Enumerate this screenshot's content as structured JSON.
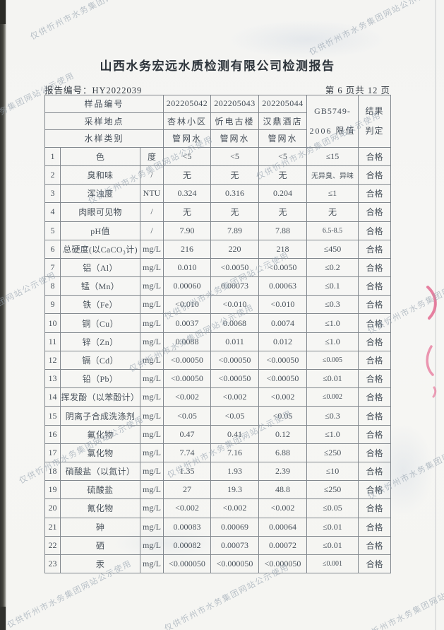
{
  "header": {
    "title": "山西水务宏远水质检测有限公司检测报告",
    "report_no": "报告编号：HY2022039",
    "page_info": "第 6 页共 12 页"
  },
  "watermark": {
    "text": "仅供忻州市水务集团网站公示使用"
  },
  "colors": {
    "stamp": "#e26089",
    "watermark": "#93a0ad",
    "ink": "#49525b",
    "paper": "#f5f5f3"
  },
  "table": {
    "header_rows": [
      {
        "label": "样品编号",
        "values": [
          "202205042",
          "202205043",
          "202205044"
        ]
      },
      {
        "label": "采样地点",
        "values": [
          "杏林小区",
          "忻电古楼",
          "汉鼎酒店"
        ]
      },
      {
        "label": "水样类别",
        "values": [
          "管网水",
          "管网水",
          "管网水"
        ]
      }
    ],
    "limit_header_line1": "GB5749-",
    "limit_header_line2": "2006 限值",
    "result_header_line1": "结果",
    "result_header_line2": "判定",
    "rows": [
      {
        "no": "1",
        "name": "色",
        "unit": "度",
        "v1": "<5",
        "v2": "<5",
        "v3": "<5",
        "limit": "≤15",
        "result": "合格"
      },
      {
        "no": "2",
        "name": "臭和味",
        "unit": "/",
        "v1": "无",
        "v2": "无",
        "v3": "无",
        "limit": "无异臭、异味",
        "result": "合格"
      },
      {
        "no": "3",
        "name": "浑浊度",
        "unit": "NTU",
        "v1": "0.324",
        "v2": "0.316",
        "v3": "0.204",
        "limit": "≤1",
        "result": "合格"
      },
      {
        "no": "4",
        "name": "肉眼可见物",
        "unit": "/",
        "v1": "无",
        "v2": "无",
        "v3": "无",
        "limit": "无",
        "result": "合格"
      },
      {
        "no": "5",
        "name": "pH值",
        "unit": "/",
        "v1": "7.90",
        "v2": "7.89",
        "v3": "7.88",
        "limit": "6.5-8.5",
        "result": "合格"
      },
      {
        "no": "6",
        "name": "总硬度(以CaCO₃计)",
        "unit": "mg/L",
        "v1": "216",
        "v2": "220",
        "v3": "218",
        "limit": "≤450",
        "result": "合格"
      },
      {
        "no": "7",
        "name": "铝（Al）",
        "unit": "mg/L",
        "v1": "0.010",
        "v2": "<0.0050",
        "v3": "<0.0050",
        "limit": "≤0.2",
        "result": "合格"
      },
      {
        "no": "8",
        "name": "锰（Mn）",
        "unit": "mg/L",
        "v1": "0.00060",
        "v2": "0.00073",
        "v3": "0.00063",
        "limit": "≤0.1",
        "result": "合格"
      },
      {
        "no": "9",
        "name": "铁（Fe）",
        "unit": "mg/L",
        "v1": "<0.010",
        "v2": "<0.010",
        "v3": "<0.010",
        "limit": "≤0.3",
        "result": "合格"
      },
      {
        "no": "10",
        "name": "铜（Cu）",
        "unit": "mg/L",
        "v1": "0.0037",
        "v2": "0.0068",
        "v3": "0.0074",
        "limit": "≤1.0",
        "result": "合格"
      },
      {
        "no": "11",
        "name": "锌（Zn）",
        "unit": "mg/L",
        "v1": "0.0088",
        "v2": "0.011",
        "v3": "0.012",
        "limit": "≤1.0",
        "result": "合格"
      },
      {
        "no": "12",
        "name": "镉（Cd）",
        "unit": "mg/L",
        "v1": "<0.00050",
        "v2": "<0.00050",
        "v3": "<0.00050",
        "limit": "≤0.005",
        "result": "合格"
      },
      {
        "no": "13",
        "name": "铅（Pb）",
        "unit": "mg/L",
        "v1": "<0.00050",
        "v2": "<0.00050",
        "v3": "<0.00050",
        "limit": "≤0.01",
        "result": "合格"
      },
      {
        "no": "14",
        "name": "挥发酚（以苯酚计）",
        "unit": "mg/L",
        "v1": "<0.002",
        "v2": "<0.002",
        "v3": "<0.002",
        "limit": "≤0.002",
        "result": "合格"
      },
      {
        "no": "15",
        "name": "阴离子合成洗涤剂",
        "unit": "mg/L",
        "v1": "<0.05",
        "v2": "<0.05",
        "v3": "<0.05",
        "limit": "≤0.3",
        "result": "合格"
      },
      {
        "no": "16",
        "name": "氟化物",
        "unit": "mg/L",
        "v1": "0.47",
        "v2": "0.41",
        "v3": "0.12",
        "limit": "≤1.0",
        "result": "合格"
      },
      {
        "no": "17",
        "name": "氯化物",
        "unit": "mg/L",
        "v1": "7.74",
        "v2": "7.16",
        "v3": "6.88",
        "limit": "≤250",
        "result": "合格"
      },
      {
        "no": "18",
        "name": "硝酸盐（以氮计）",
        "unit": "mg/L",
        "v1": "1.35",
        "v2": "1.93",
        "v3": "2.39",
        "limit": "≤10",
        "result": "合格"
      },
      {
        "no": "19",
        "name": "硫酸盐",
        "unit": "mg/L",
        "v1": "27",
        "v2": "19.3",
        "v3": "48.8",
        "limit": "≤250",
        "result": "合格"
      },
      {
        "no": "20",
        "name": "氰化物",
        "unit": "mg/L",
        "v1": "<0.002",
        "v2": "<0.002",
        "v3": "<0.002",
        "limit": "≤0.05",
        "result": "合格"
      },
      {
        "no": "21",
        "name": "砷",
        "unit": "mg/L",
        "v1": "0.00083",
        "v2": "0.00069",
        "v3": "0.00064",
        "limit": "≤0.01",
        "result": "合格"
      },
      {
        "no": "22",
        "name": "硒",
        "unit": "mg/L",
        "v1": "0.00082",
        "v2": "0.00073",
        "v3": "0.00072",
        "limit": "≤0.01",
        "result": "合格"
      },
      {
        "no": "23",
        "name": "汞",
        "unit": "mg/L",
        "v1": "<0.000050",
        "v2": "<0.000050",
        "v3": "<0.000050",
        "limit": "≤0.001",
        "result": "合格"
      }
    ]
  }
}
